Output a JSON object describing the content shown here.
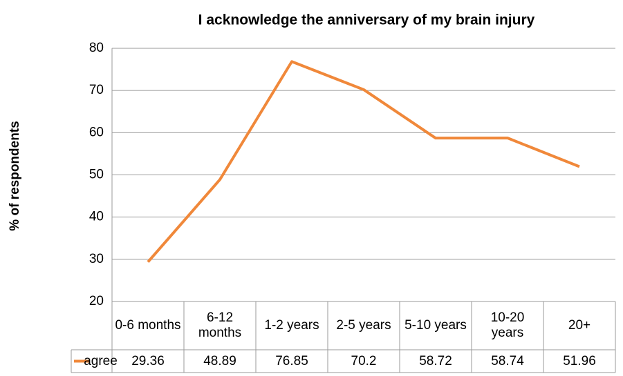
{
  "chart_data": {
    "type": "line",
    "title": "I acknowledge the anniversary of my brain injury",
    "y_label": "% of respondents",
    "categories": [
      "0-6 months",
      "6-12 months",
      "1-2 years",
      "2-5 years",
      "5-10 years",
      "10-20 years",
      "20+"
    ],
    "series": [
      {
        "name": "agree",
        "color": "#f0883a",
        "values": [
          29.36,
          48.89,
          76.85,
          70.2,
          58.72,
          58.74,
          51.96
        ]
      }
    ],
    "ylim": [
      20,
      80
    ],
    "yticks": [
      20,
      30,
      40,
      50,
      60,
      70,
      80
    ],
    "grid": true
  }
}
